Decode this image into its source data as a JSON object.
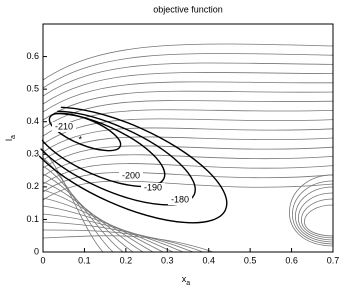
{
  "chart_data": {
    "type": "contour",
    "title": "objective function",
    "xlabel": {
      "base": "x",
      "sub": "a"
    },
    "ylabel": {
      "base": "l",
      "sub": "a"
    },
    "xlim": [
      0,
      0.7
    ],
    "ylim": [
      0,
      0.7
    ],
    "xticks": [
      0,
      0.1,
      0.2,
      0.3,
      0.4,
      0.5,
      0.6,
      0.7
    ],
    "yticks": [
      0,
      0.1,
      0.2,
      0.3,
      0.4,
      0.5,
      0.6
    ],
    "contour_labels": [
      -210,
      -200,
      -190,
      -180
    ],
    "marker": {
      "x": 0.09,
      "y": 0.35
    },
    "color": "#000000"
  }
}
